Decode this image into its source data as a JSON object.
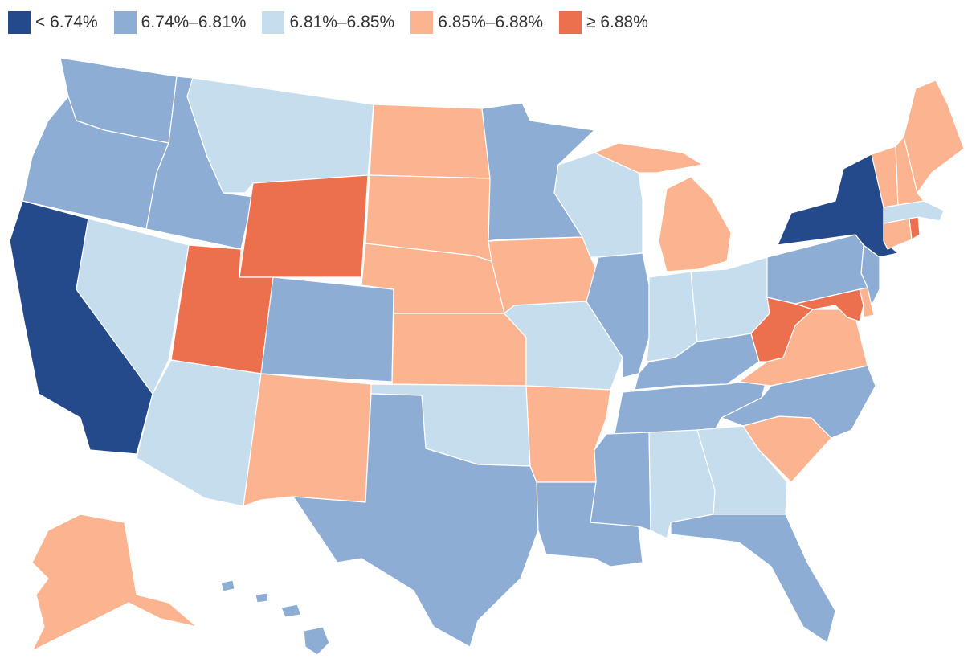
{
  "legend": [
    {
      "label": "< 6.74%",
      "color": "#244a8c"
    },
    {
      "label": "6.74%–6.81%",
      "color": "#8dadd5"
    },
    {
      "label": "6.81%–6.85%",
      "color": "#c6ddee"
    },
    {
      "label": "6.85%–6.88%",
      "color": "#fbb48f"
    },
    {
      "label": "≥ 6.88%",
      "color": "#ec704d"
    }
  ],
  "bins": {
    "WA": 1,
    "OR": 1,
    "CA": 0,
    "NV": 2,
    "ID": 1,
    "MT": 2,
    "WY": 4,
    "UT": 4,
    "AZ": 2,
    "CO": 1,
    "NM": 3,
    "ND": 3,
    "SD": 3,
    "NE": 3,
    "KS": 3,
    "OK": 2,
    "TX": 1,
    "MN": 1,
    "IA": 3,
    "MO": 2,
    "AR": 3,
    "LA": 1,
    "WI": 2,
    "IL": 1,
    "MI": 3,
    "IN": 2,
    "OH": 2,
    "KY": 1,
    "TN": 1,
    "MS": 1,
    "AL": 2,
    "GA": 2,
    "FL": 1,
    "SC": 3,
    "NC": 1,
    "VA": 3,
    "WV": 4,
    "MD": 4,
    "DE": 3,
    "NJ": 1,
    "PA": 1,
    "NY": 0,
    "CT": 3,
    "RI": 4,
    "MA": 2,
    "VT": 3,
    "NH": 3,
    "ME": 3,
    "AK": 3,
    "HI": 1
  }
}
